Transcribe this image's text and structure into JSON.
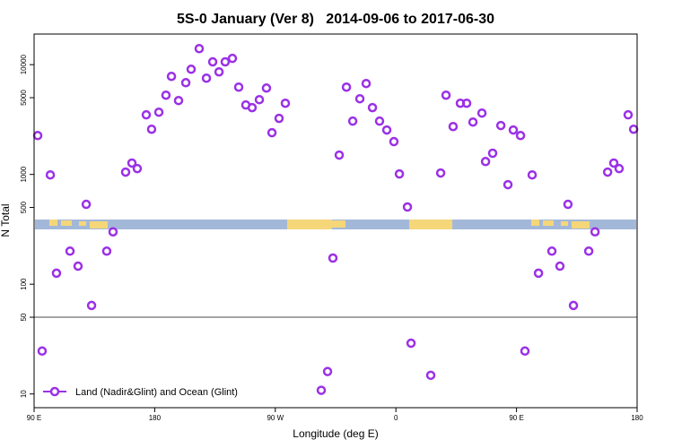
{
  "chart_data": {
    "type": "scatter",
    "title": "5S-0 January (Ver 8)   2014-09-06 to 2017-06-30",
    "xlabel": "Longitude (deg E)",
    "ylabel": "N Total",
    "legend": "bottom-left",
    "series": [
      {
        "name": "Land (Nadir&Glint) and Ocean (Glint)",
        "color": "#9b30e6",
        "x": [
          92.7,
          96.0,
          102.1,
          106.7,
          116.8,
          122.8,
          128.9,
          132.9,
          144.2,
          148.9,
          158.3,
          163.0,
          167.0,
          173.7,
          177.7,
          183.1,
          188.4,
          192.5,
          197.8,
          203.2,
          207.2,
          213.2,
          218.6,
          223.3,
          228.0,
          232.6,
          238.0,
          242.7,
          248.0,
          252.7,
          258.1,
          263.4,
          267.5,
          272.8,
          277.5,
          304.3,
          309.0,
          313.0,
          317.7,
          323.1,
          327.8,
          333.1,
          337.8,
          342.5,
          347.8,
          353.2,
          358.5,
          362.6,
          368.6,
          371.3,
          386.0,
          393.4,
          397.4,
          402.7,
          408.1,
          412.8,
          417.5,
          424.2,
          426.9,
          432.2,
          438.3,
          443.6,
          447.6,
          453.0,
          456.3,
          461.7,
          466.4,
          476.4,
          482.4,
          488.4,
          492.5,
          503.9,
          508.6,
          518.0,
          522.6,
          526.6,
          533.3,
          537.4
        ],
        "values": [
          2260,
          24.6,
          990,
          126,
          200,
          146,
          534,
          64,
          200,
          300,
          1050,
          1270,
          1130,
          3490,
          2580,
          3690,
          5270,
          7820,
          4710,
          6850,
          9080,
          14000,
          7530,
          10600,
          8590,
          10600,
          11400,
          6240,
          4290,
          4060,
          4800,
          6120,
          2400,
          3240,
          4450,
          10.8,
          16,
          173,
          1500,
          6240,
          3060,
          4890,
          6730,
          4060,
          3060,
          2540,
          1990,
          1010,
          505,
          29,
          14.8,
          1030,
          5270,
          2730,
          4450,
          4450,
          3000,
          3620,
          1310,
          1560,
          2790,
          807,
          2540,
          2260,
          24.6,
          990,
          126,
          200,
          146,
          534,
          64,
          200,
          300,
          1050,
          1270,
          1130,
          3490,
          2580
        ]
      }
    ],
    "xlim": [
      90,
      540
    ],
    "xticks": [
      {
        "value": 90,
        "label": "90 E"
      },
      180,
      {
        "value": 270,
        "label": "90 W"
      },
      {
        "value": 360,
        "label": "0"
      },
      {
        "value": 450,
        "label": "90 E"
      },
      {
        "value": 540,
        "label": "180"
      }
    ],
    "ylim": [
      7.5,
      19000
    ],
    "log_y": true,
    "yticks": [
      10,
      50,
      100,
      500,
      1000,
      5000,
      10000
    ],
    "hline": 50
  }
}
